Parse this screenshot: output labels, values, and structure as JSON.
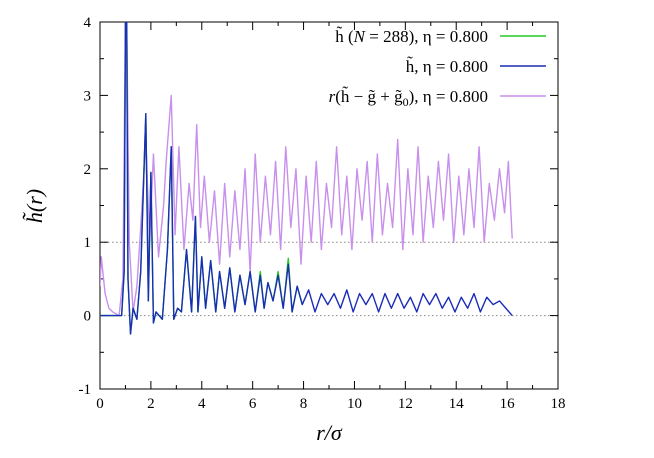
{
  "chart_data": {
    "type": "line",
    "xlabel": "r/σ",
    "ylabel": "h̃(r)",
    "xlim": [
      0,
      18
    ],
    "ylim": [
      -1,
      4
    ],
    "xticks": [
      0,
      2,
      4,
      6,
      8,
      10,
      12,
      14,
      16,
      18
    ],
    "yticks": [
      -1,
      0,
      1,
      2,
      3,
      4
    ],
    "grid": false,
    "reference_lines": [
      0,
      1
    ],
    "legend_position": "top-right",
    "series": [
      {
        "name": "h̃ (N = 288), η = 0.800",
        "legend_parts": [
          "h̃ (",
          "N",
          " = 288), η = 0.800"
        ],
        "color": "#22cc22",
        "x": [
          0,
          0.5,
          0.85,
          0.95,
          1.0,
          1.05,
          1.1,
          1.2,
          1.3,
          1.45,
          1.6,
          1.8,
          1.9,
          2.0,
          2.1,
          2.2,
          2.45,
          2.65,
          2.8,
          2.9,
          3.05,
          3.2,
          3.4,
          3.6,
          3.75,
          3.85,
          4.0,
          4.15,
          4.35,
          4.55,
          4.7,
          4.9,
          5.1,
          5.3,
          5.5,
          5.7,
          5.9,
          6.1,
          6.3,
          6.45,
          6.6,
          6.8,
          7.0,
          7.2,
          7.4,
          7.55,
          7.75,
          7.95
        ],
        "y": [
          0,
          0,
          0,
          0.6,
          4.0,
          4.0,
          0.5,
          -0.25,
          0.1,
          -0.05,
          0.6,
          2.75,
          0.2,
          1.95,
          -0.1,
          0.05,
          -0.05,
          0.9,
          2.3,
          -0.05,
          0.1,
          0.05,
          0.9,
          0.05,
          1.35,
          0.05,
          0.8,
          0.1,
          0.75,
          0.05,
          0.6,
          0.1,
          0.65,
          0.05,
          0.55,
          0.15,
          0.6,
          0.05,
          0.6,
          0.1,
          0.45,
          0.2,
          0.6,
          0.1,
          0.78,
          0.05,
          0.4,
          0.15
        ]
      },
      {
        "name": "h̃, η = 0.800",
        "legend_parts": [
          "h̃, η = 0.800"
        ],
        "color": "#1a2cb8",
        "x": [
          0,
          0.5,
          0.85,
          0.95,
          1.0,
          1.05,
          1.1,
          1.2,
          1.3,
          1.45,
          1.6,
          1.8,
          1.9,
          2.0,
          2.1,
          2.2,
          2.45,
          2.65,
          2.8,
          2.9,
          3.05,
          3.2,
          3.4,
          3.6,
          3.75,
          3.85,
          4.0,
          4.15,
          4.35,
          4.55,
          4.7,
          4.9,
          5.1,
          5.3,
          5.5,
          5.7,
          5.9,
          6.1,
          6.3,
          6.45,
          6.6,
          6.8,
          7.0,
          7.2,
          7.4,
          7.55,
          7.75,
          7.95,
          8.2,
          8.45,
          8.7,
          8.95,
          9.2,
          9.45,
          9.7,
          9.95,
          10.2,
          10.45,
          10.7,
          10.95,
          11.2,
          11.45,
          11.7,
          11.95,
          12.2,
          12.45,
          12.7,
          12.95,
          13.2,
          13.45,
          13.7,
          13.95,
          14.2,
          14.45,
          14.7,
          14.95,
          15.2,
          15.45,
          15.7,
          15.95,
          16.2
        ],
        "y": [
          0,
          0,
          0,
          0.6,
          4.0,
          4.0,
          0.5,
          -0.25,
          0.1,
          -0.05,
          0.6,
          2.75,
          0.2,
          1.95,
          -0.1,
          0.05,
          -0.05,
          0.9,
          2.3,
          -0.05,
          0.1,
          0.05,
          0.9,
          0.05,
          1.35,
          0.05,
          0.8,
          0.1,
          0.75,
          0.05,
          0.6,
          0.1,
          0.65,
          0.05,
          0.55,
          0.15,
          0.6,
          0.05,
          0.55,
          0.1,
          0.45,
          0.2,
          0.55,
          0.1,
          0.7,
          0.05,
          0.4,
          0.15,
          0.35,
          0.05,
          0.3,
          0.15,
          0.3,
          0.1,
          0.35,
          0.05,
          0.3,
          0.15,
          0.3,
          0.05,
          0.3,
          0.1,
          0.3,
          0.1,
          0.25,
          0.05,
          0.3,
          0.15,
          0.3,
          0.1,
          0.25,
          0.05,
          0.25,
          0.1,
          0.3,
          0.05,
          0.25,
          0.15,
          0.2,
          0.1,
          0.0
        ]
      },
      {
        "name": "r(h̃ − g̃ + g̃0), η = 0.800",
        "legend_parts": [
          "r",
          "(h̃ − g̃ + g̃",
          "0",
          "), η = 0.800"
        ],
        "color": "#c890ec",
        "x": [
          0,
          0.05,
          0.2,
          0.35,
          0.5,
          0.75,
          0.9,
          1.0,
          1.05,
          1.15,
          1.3,
          1.45,
          1.6,
          1.8,
          1.95,
          2.1,
          2.3,
          2.5,
          2.6,
          2.8,
          2.95,
          3.1,
          3.3,
          3.5,
          3.65,
          3.8,
          3.95,
          4.1,
          4.3,
          4.5,
          4.7,
          4.9,
          5.1,
          5.3,
          5.5,
          5.7,
          5.9,
          6.1,
          6.3,
          6.5,
          6.7,
          6.9,
          7.1,
          7.3,
          7.5,
          7.7,
          7.9,
          8.1,
          8.3,
          8.5,
          8.7,
          8.9,
          9.1,
          9.3,
          9.5,
          9.7,
          9.9,
          10.1,
          10.3,
          10.5,
          10.7,
          10.9,
          11.1,
          11.3,
          11.5,
          11.7,
          11.9,
          12.1,
          12.3,
          12.5,
          12.7,
          12.9,
          13.1,
          13.3,
          13.5,
          13.7,
          13.9,
          14.1,
          14.3,
          14.5,
          14.7,
          14.9,
          15.1,
          15.3,
          15.5,
          15.7,
          15.9,
          16.05,
          16.2
        ],
        "y": [
          0.4,
          0.8,
          0.3,
          0.1,
          0.05,
          0.0,
          0.5,
          4.0,
          4.0,
          1.0,
          0.05,
          0.4,
          1.2,
          2.4,
          1.0,
          2.2,
          0.8,
          1.5,
          2.1,
          3.0,
          1.1,
          2.3,
          0.9,
          1.8,
          1.3,
          2.6,
          1.2,
          1.9,
          1.0,
          1.7,
          0.7,
          1.8,
          0.8,
          1.7,
          0.9,
          2.0,
          0.6,
          2.2,
          1.0,
          1.9,
          1.1,
          2.1,
          0.9,
          2.3,
          1.2,
          2.0,
          0.7,
          1.9,
          1.0,
          2.1,
          0.9,
          1.8,
          1.2,
          2.3,
          1.1,
          1.9,
          0.9,
          2.0,
          1.3,
          2.1,
          1.0,
          2.2,
          1.1,
          1.8,
          1.2,
          2.4,
          0.9,
          2.0,
          1.1,
          2.3,
          1.0,
          1.9,
          1.2,
          2.1,
          1.3,
          2.2,
          1.0,
          1.9,
          1.1,
          2.0,
          1.2,
          2.3,
          1.0,
          1.8,
          1.3,
          2.0,
          1.4,
          2.1,
          1.05
        ]
      }
    ]
  }
}
